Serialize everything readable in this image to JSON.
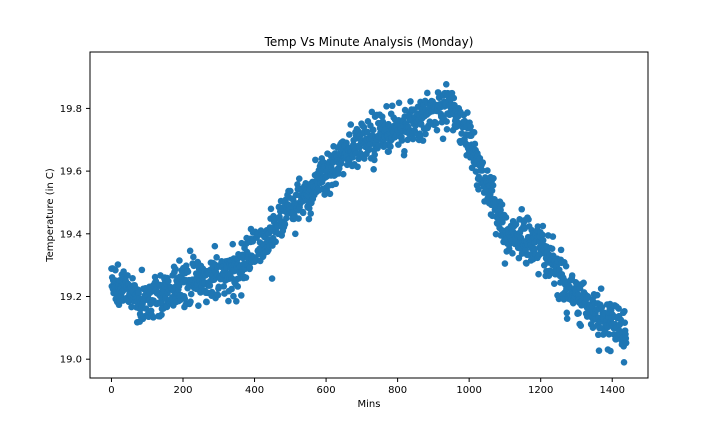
{
  "chart_data": {
    "type": "scatter",
    "title": "Temp Vs Minute Analysis (Monday)",
    "xlabel": "Mins",
    "ylabel": "Temperature (in C)",
    "xlim": [
      -60,
      1500
    ],
    "ylim": [
      18.94,
      19.98
    ],
    "xticks": [
      0,
      200,
      400,
      600,
      800,
      1000,
      1200,
      1400
    ],
    "yticks": [
      19.0,
      19.2,
      19.4,
      19.6,
      19.8
    ],
    "ytick_labels": [
      "19.0",
      "19.2",
      "19.4",
      "19.6",
      "19.8"
    ],
    "grid": false,
    "legend": "none",
    "colors": {
      "marker": "#1f77b4",
      "axes": "#000000",
      "background": "#ffffff"
    },
    "series": [
      {
        "x_range": [
          0,
          1439
        ],
        "trend_points": [
          {
            "x": 0,
            "y": 19.25
          },
          {
            "x": 100,
            "y": 19.18
          },
          {
            "x": 200,
            "y": 19.24
          },
          {
            "x": 300,
            "y": 19.26
          },
          {
            "x": 400,
            "y": 19.33
          },
          {
            "x": 500,
            "y": 19.48
          },
          {
            "x": 600,
            "y": 19.58
          },
          {
            "x": 700,
            "y": 19.7
          },
          {
            "x": 800,
            "y": 19.73
          },
          {
            "x": 900,
            "y": 19.79
          },
          {
            "x": 940,
            "y": 19.82
          },
          {
            "x": 1000,
            "y": 19.7
          },
          {
            "x": 1100,
            "y": 19.4
          },
          {
            "x": 1200,
            "y": 19.36
          },
          {
            "x": 1300,
            "y": 19.19
          },
          {
            "x": 1400,
            "y": 19.12
          },
          {
            "x": 1439,
            "y": 19.07
          }
        ]
      }
    ]
  }
}
